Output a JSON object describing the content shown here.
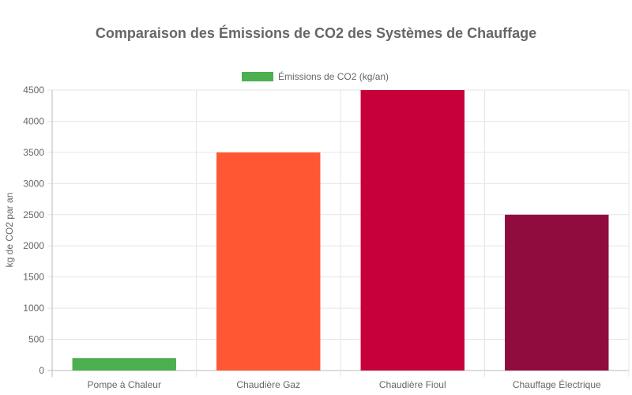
{
  "chart_data": {
    "type": "bar",
    "title": "Comparaison des Émissions de CO2 des Systèmes de Chauffage",
    "xlabel": "",
    "ylabel": "kg de CO2 par an",
    "categories": [
      "Pompe à Chaleur",
      "Chaudière Gaz",
      "Chaudière Fioul",
      "Chauffage Électrique"
    ],
    "series": [
      {
        "name": "Émissions de CO2 (kg/an)",
        "values": [
          200,
          3500,
          4500,
          2500
        ],
        "colors": [
          "#4CAF50",
          "#FF5733",
          "#C70039",
          "#900C3F"
        ]
      }
    ],
    "ylim": [
      0,
      4500
    ],
    "yticks": [
      "0",
      "500",
      "1000",
      "1500",
      "2000",
      "2500",
      "3000",
      "3500",
      "4000",
      "4500"
    ],
    "grid": true,
    "legend_position": "top",
    "legend_color": "#4CAF50"
  }
}
